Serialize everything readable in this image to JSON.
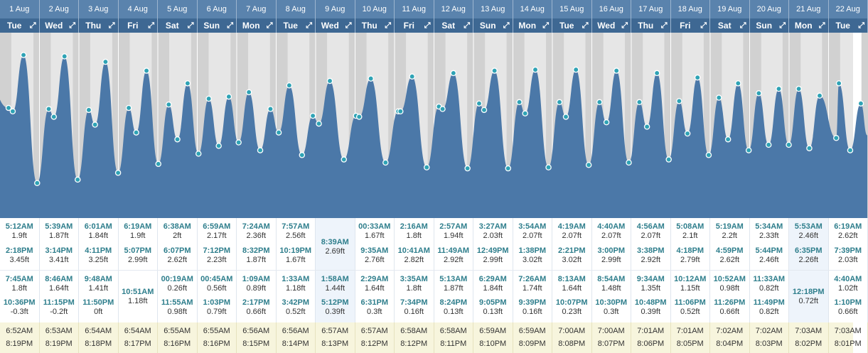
{
  "colors": {
    "water": "#4b78a8",
    "sky": "#e6e6e6",
    "night": "#d1d1d1",
    "marker": "#2fa3b5",
    "header_date": "#5a83ad",
    "header_day": "#3e6893",
    "tide_time": "#2e7e8c",
    "sun_bg": "#f7f5dd"
  },
  "header": {
    "expand_icon": "expand-arrows-icon",
    "expand_glyph": "⤢"
  },
  "days": [
    {
      "date": "1 Aug",
      "dow": "Tue",
      "tides": [
        {
          "time": "5:12AM",
          "height": "1.9ft"
        },
        {
          "time": "2:18PM",
          "height": "3.45ft"
        },
        {
          "time": "7:45AM",
          "height": "1.8ft"
        },
        {
          "time": "10:36PM",
          "height": "-0.3ft"
        }
      ],
      "sunrise": "6:52AM",
      "sunset": "8:19PM"
    },
    {
      "date": "2 Aug",
      "dow": "Wed",
      "tides": [
        {
          "time": "5:39AM",
          "height": "1.87ft"
        },
        {
          "time": "3:14PM",
          "height": "3.41ft"
        },
        {
          "time": "8:46AM",
          "height": "1.64ft"
        },
        {
          "time": "11:15PM",
          "height": "-0.2ft"
        }
      ],
      "sunrise": "6:53AM",
      "sunset": "8:19PM"
    },
    {
      "date": "3 Aug",
      "dow": "Thu",
      "tides": [
        {
          "time": "6:01AM",
          "height": "1.84ft"
        },
        {
          "time": "4:11PM",
          "height": "3.25ft"
        },
        {
          "time": "9:48AM",
          "height": "1.41ft"
        },
        {
          "time": "11:50PM",
          "height": "0ft"
        }
      ],
      "sunrise": "6:54AM",
      "sunset": "8:18PM"
    },
    {
      "date": "4 Aug",
      "dow": "Fri",
      "tides": [
        {
          "time": "6:19AM",
          "height": "1.9ft"
        },
        {
          "time": "5:07PM",
          "height": "2.99ft"
        },
        {
          "time": "10:51AM",
          "height": "1.18ft"
        }
      ],
      "sunrise": "6:54AM",
      "sunset": "8:17PM"
    },
    {
      "date": "5 Aug",
      "dow": "Sat",
      "tides": [
        {
          "time": "6:38AM",
          "height": "2ft"
        },
        {
          "time": "6:07PM",
          "height": "2.62ft"
        },
        {
          "time": "00:19AM",
          "height": "0.26ft"
        },
        {
          "time": "11:55AM",
          "height": "0.98ft"
        }
      ],
      "sunrise": "6:55AM",
      "sunset": "8:16PM"
    },
    {
      "date": "6 Aug",
      "dow": "Sun",
      "tides": [
        {
          "time": "6:59AM",
          "height": "2.17ft"
        },
        {
          "time": "7:12PM",
          "height": "2.23ft"
        },
        {
          "time": "00:45AM",
          "height": "0.56ft"
        },
        {
          "time": "1:03PM",
          "height": "0.79ft"
        }
      ],
      "sunrise": "6:55AM",
      "sunset": "8:16PM"
    },
    {
      "date": "7 Aug",
      "dow": "Mon",
      "tides": [
        {
          "time": "7:24AM",
          "height": "2.36ft"
        },
        {
          "time": "8:32PM",
          "height": "1.87ft"
        },
        {
          "time": "1:09AM",
          "height": "0.89ft"
        },
        {
          "time": "2:17PM",
          "height": "0.66ft"
        }
      ],
      "sunrise": "6:56AM",
      "sunset": "8:15PM"
    },
    {
      "date": "8 Aug",
      "dow": "Tue",
      "tides": [
        {
          "time": "7:57AM",
          "height": "2.56ft"
        },
        {
          "time": "10:19PM",
          "height": "1.67ft"
        },
        {
          "time": "1:33AM",
          "height": "1.18ft"
        },
        {
          "time": "3:42PM",
          "height": "0.52ft"
        }
      ],
      "sunrise": "6:56AM",
      "sunset": "8:14PM"
    },
    {
      "date": "9 Aug",
      "dow": "Wed",
      "tides": [
        {
          "time": "8:39AM",
          "height": "2.69ft"
        },
        {
          "time": "1:58AM",
          "height": "1.44ft"
        },
        {
          "time": "5:12PM",
          "height": "0.39ft"
        }
      ],
      "sunrise": "6:57AM",
      "sunset": "8:13PM"
    },
    {
      "date": "10 Aug",
      "dow": "Thu",
      "tides": [
        {
          "time": "00:33AM",
          "height": "1.67ft"
        },
        {
          "time": "9:35AM",
          "height": "2.76ft"
        },
        {
          "time": "2:29AM",
          "height": "1.64ft"
        },
        {
          "time": "6:31PM",
          "height": "0.3ft"
        }
      ],
      "sunrise": "6:57AM",
      "sunset": "8:12PM"
    },
    {
      "date": "11 Aug",
      "dow": "Fri",
      "tides": [
        {
          "time": "2:16AM",
          "height": "1.8ft"
        },
        {
          "time": "10:41AM",
          "height": "2.82ft"
        },
        {
          "time": "3:35AM",
          "height": "1.8ft"
        },
        {
          "time": "7:34PM",
          "height": "0.16ft"
        }
      ],
      "sunrise": "6:58AM",
      "sunset": "8:12PM"
    },
    {
      "date": "12 Aug",
      "dow": "Sat",
      "tides": [
        {
          "time": "2:57AM",
          "height": "1.94ft"
        },
        {
          "time": "11:49AM",
          "height": "2.92ft"
        },
        {
          "time": "5:13AM",
          "height": "1.87ft"
        },
        {
          "time": "8:24PM",
          "height": "0.13ft"
        }
      ],
      "sunrise": "6:58AM",
      "sunset": "8:11PM"
    },
    {
      "date": "13 Aug",
      "dow": "Sun",
      "tides": [
        {
          "time": "3:27AM",
          "height": "2.03ft"
        },
        {
          "time": "12:49PM",
          "height": "2.99ft"
        },
        {
          "time": "6:29AM",
          "height": "1.84ft"
        },
        {
          "time": "9:05PM",
          "height": "0.13ft"
        }
      ],
      "sunrise": "6:59AM",
      "sunset": "8:10PM"
    },
    {
      "date": "14 Aug",
      "dow": "Mon",
      "tides": [
        {
          "time": "3:54AM",
          "height": "2.07ft"
        },
        {
          "time": "1:38PM",
          "height": "3.02ft"
        },
        {
          "time": "7:26AM",
          "height": "1.74ft"
        },
        {
          "time": "9:39PM",
          "height": "0.16ft"
        }
      ],
      "sunrise": "6:59AM",
      "sunset": "8:09PM"
    },
    {
      "date": "15 Aug",
      "dow": "Tue",
      "tides": [
        {
          "time": "4:19AM",
          "height": "2.07ft"
        },
        {
          "time": "2:21PM",
          "height": "3.02ft"
        },
        {
          "time": "8:13AM",
          "height": "1.64ft"
        },
        {
          "time": "10:07PM",
          "height": "0.23ft"
        }
      ],
      "sunrise": "7:00AM",
      "sunset": "8:08PM"
    },
    {
      "date": "16 Aug",
      "dow": "Wed",
      "tides": [
        {
          "time": "4:40AM",
          "height": "2.07ft"
        },
        {
          "time": "3:00PM",
          "height": "2.99ft"
        },
        {
          "time": "8:54AM",
          "height": "1.48ft"
        },
        {
          "time": "10:30PM",
          "height": "0.3ft"
        }
      ],
      "sunrise": "7:00AM",
      "sunset": "8:07PM"
    },
    {
      "date": "17 Aug",
      "dow": "Thu",
      "tides": [
        {
          "time": "4:56AM",
          "height": "2.07ft"
        },
        {
          "time": "3:38PM",
          "height": "2.92ft"
        },
        {
          "time": "9:34AM",
          "height": "1.35ft"
        },
        {
          "time": "10:48PM",
          "height": "0.39ft"
        }
      ],
      "sunrise": "7:01AM",
      "sunset": "8:06PM"
    },
    {
      "date": "18 Aug",
      "dow": "Fri",
      "tides": [
        {
          "time": "5:08AM",
          "height": "2.1ft"
        },
        {
          "time": "4:18PM",
          "height": "2.79ft"
        },
        {
          "time": "10:12AM",
          "height": "1.15ft"
        },
        {
          "time": "11:06PM",
          "height": "0.52ft"
        }
      ],
      "sunrise": "7:01AM",
      "sunset": "8:05PM"
    },
    {
      "date": "19 Aug",
      "dow": "Sat",
      "tides": [
        {
          "time": "5:19AM",
          "height": "2.2ft"
        },
        {
          "time": "4:59PM",
          "height": "2.62ft"
        },
        {
          "time": "10:52AM",
          "height": "0.98ft"
        },
        {
          "time": "11:26PM",
          "height": "0.66ft"
        }
      ],
      "sunrise": "7:02AM",
      "sunset": "8:04PM"
    },
    {
      "date": "20 Aug",
      "dow": "Sun",
      "tides": [
        {
          "time": "5:34AM",
          "height": "2.33ft"
        },
        {
          "time": "5:44PM",
          "height": "2.46ft"
        },
        {
          "time": "11:33AM",
          "height": "0.82ft"
        },
        {
          "time": "11:49PM",
          "height": "0.82ft"
        }
      ],
      "sunrise": "7:02AM",
      "sunset": "8:03PM"
    },
    {
      "date": "21 Aug",
      "dow": "Mon",
      "tides": [
        {
          "time": "5:53AM",
          "height": "2.46ft"
        },
        {
          "time": "6:35PM",
          "height": "2.26ft"
        },
        {
          "time": "12:18PM",
          "height": "0.72ft"
        }
      ],
      "sunrise": "7:03AM",
      "sunset": "8:02PM"
    },
    {
      "date": "22 Aug",
      "dow": "Tue",
      "tides": [
        {
          "time": "6:19AM",
          "height": "2.62ft"
        },
        {
          "time": "7:39PM",
          "height": "2.03ft"
        },
        {
          "time": "4:40AM",
          "height": "1.02ft"
        },
        {
          "time": "1:10PM",
          "height": "0.66ft"
        }
      ],
      "sunrise": "7:03AM",
      "sunset": "8:01PM"
    }
  ],
  "chart_data": {
    "type": "area",
    "ylabel": "",
    "ylim": [
      -1.2,
      4.0
    ],
    "x_start": "2023-08-01 00:00",
    "days": 22,
    "tides_note": "",
    "points": [
      [
        "1 Aug",
        "5:12AM",
        1.9
      ],
      [
        "1 Aug",
        "7:45AM",
        1.8
      ],
      [
        "1 Aug",
        "2:18PM",
        3.45
      ],
      [
        "1 Aug",
        "10:36PM",
        -0.3
      ],
      [
        "2 Aug",
        "5:39AM",
        1.87
      ],
      [
        "2 Aug",
        "8:46AM",
        1.64
      ],
      [
        "2 Aug",
        "3:14PM",
        3.41
      ],
      [
        "2 Aug",
        "11:15PM",
        -0.2
      ],
      [
        "3 Aug",
        "6:01AM",
        1.84
      ],
      [
        "3 Aug",
        "9:48AM",
        1.41
      ],
      [
        "3 Aug",
        "4:11PM",
        3.25
      ],
      [
        "3 Aug",
        "11:50PM",
        0
      ],
      [
        "4 Aug",
        "6:19AM",
        1.9
      ],
      [
        "4 Aug",
        "10:51AM",
        1.18
      ],
      [
        "4 Aug",
        "5:07PM",
        2.99
      ],
      [
        "5 Aug",
        "00:19AM",
        0.26
      ],
      [
        "5 Aug",
        "6:38AM",
        2
      ],
      [
        "5 Aug",
        "11:55AM",
        0.98
      ],
      [
        "5 Aug",
        "6:07PM",
        2.62
      ],
      [
        "6 Aug",
        "00:45AM",
        0.56
      ],
      [
        "6 Aug",
        "6:59AM",
        2.17
      ],
      [
        "6 Aug",
        "1:03PM",
        0.79
      ],
      [
        "6 Aug",
        "7:12PM",
        2.23
      ],
      [
        "7 Aug",
        "1:09AM",
        0.89
      ],
      [
        "7 Aug",
        "7:24AM",
        2.36
      ],
      [
        "7 Aug",
        "2:17PM",
        0.66
      ],
      [
        "7 Aug",
        "8:32PM",
        1.87
      ],
      [
        "8 Aug",
        "1:33AM",
        1.18
      ],
      [
        "8 Aug",
        "7:57AM",
        2.56
      ],
      [
        "8 Aug",
        "3:42PM",
        0.52
      ],
      [
        "8 Aug",
        "10:19PM",
        1.67
      ],
      [
        "9 Aug",
        "1:58AM",
        1.44
      ],
      [
        "9 Aug",
        "8:39AM",
        2.69
      ],
      [
        "9 Aug",
        "5:12PM",
        0.39
      ],
      [
        "10 Aug",
        "00:33AM",
        1.67
      ],
      [
        "10 Aug",
        "2:29AM",
        1.64
      ],
      [
        "10 Aug",
        "9:35AM",
        2.76
      ],
      [
        "10 Aug",
        "6:31PM",
        0.3
      ],
      [
        "11 Aug",
        "2:16AM",
        1.8
      ],
      [
        "11 Aug",
        "3:35AM",
        1.8
      ],
      [
        "11 Aug",
        "10:41AM",
        2.82
      ],
      [
        "11 Aug",
        "7:34PM",
        0.16
      ],
      [
        "12 Aug",
        "2:57AM",
        1.94
      ],
      [
        "12 Aug",
        "5:13AM",
        1.87
      ],
      [
        "12 Aug",
        "11:49AM",
        2.92
      ],
      [
        "12 Aug",
        "8:24PM",
        0.13
      ],
      [
        "13 Aug",
        "3:27AM",
        2.03
      ],
      [
        "13 Aug",
        "6:29AM",
        1.84
      ],
      [
        "13 Aug",
        "12:49PM",
        2.99
      ],
      [
        "13 Aug",
        "9:05PM",
        0.13
      ],
      [
        "14 Aug",
        "3:54AM",
        2.07
      ],
      [
        "14 Aug",
        "7:26AM",
        1.74
      ],
      [
        "14 Aug",
        "1:38PM",
        3.02
      ],
      [
        "14 Aug",
        "9:39PM",
        0.16
      ],
      [
        "15 Aug",
        "4:19AM",
        2.07
      ],
      [
        "15 Aug",
        "8:13AM",
        1.64
      ],
      [
        "15 Aug",
        "2:21PM",
        3.02
      ],
      [
        "15 Aug",
        "10:07PM",
        0.23
      ],
      [
        "16 Aug",
        "4:40AM",
        2.07
      ],
      [
        "16 Aug",
        "8:54AM",
        1.48
      ],
      [
        "16 Aug",
        "3:00PM",
        2.99
      ],
      [
        "16 Aug",
        "10:30PM",
        0.3
      ],
      [
        "17 Aug",
        "4:56AM",
        2.07
      ],
      [
        "17 Aug",
        "9:34AM",
        1.35
      ],
      [
        "17 Aug",
        "3:38PM",
        2.92
      ],
      [
        "17 Aug",
        "10:48PM",
        0.39
      ],
      [
        "18 Aug",
        "5:08AM",
        2.1
      ],
      [
        "18 Aug",
        "10:12AM",
        1.15
      ],
      [
        "18 Aug",
        "4:18PM",
        2.79
      ],
      [
        "18 Aug",
        "11:06PM",
        0.52
      ],
      [
        "19 Aug",
        "5:19AM",
        2.2
      ],
      [
        "19 Aug",
        "10:52AM",
        0.98
      ],
      [
        "19 Aug",
        "4:59PM",
        2.62
      ],
      [
        "19 Aug",
        "11:26PM",
        0.66
      ],
      [
        "20 Aug",
        "5:34AM",
        2.33
      ],
      [
        "20 Aug",
        "11:33AM",
        0.82
      ],
      [
        "20 Aug",
        "5:44PM",
        2.46
      ],
      [
        "20 Aug",
        "11:49PM",
        0.82
      ],
      [
        "21 Aug",
        "5:53AM",
        2.46
      ],
      [
        "21 Aug",
        "12:18PM",
        0.72
      ],
      [
        "21 Aug",
        "6:35PM",
        2.26
      ],
      [
        "22 Aug",
        "4:40AM",
        1.02
      ],
      [
        "22 Aug",
        "6:19AM",
        2.62
      ],
      [
        "22 Aug",
        "1:10PM",
        0.66
      ],
      [
        "22 Aug",
        "7:39PM",
        2.03
      ]
    ]
  }
}
